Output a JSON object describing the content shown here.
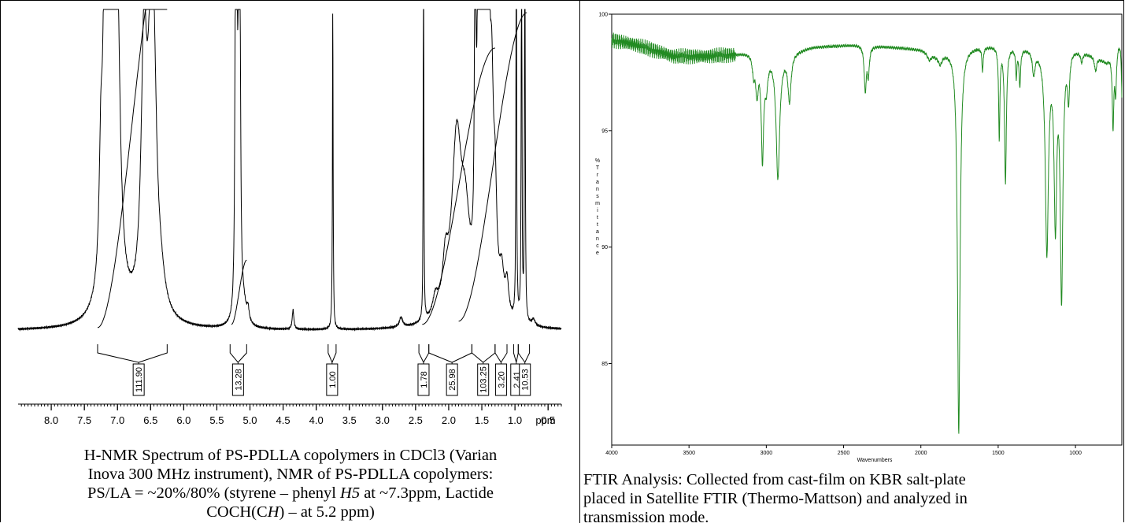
{
  "chart_data": [
    {
      "type": "line",
      "name": "nmr",
      "xunit": "ppm",
      "xlim": [
        8.5,
        0.3
      ],
      "x_ticks": [
        "8.0",
        "7.5",
        "7.0",
        "6.5",
        "6.0",
        "5.5",
        "5.0",
        "4.5",
        "4.0",
        "3.5",
        "3.0",
        "2.5",
        "2.0",
        "1.5",
        "1.0",
        "0.5"
      ],
      "peaks": [
        {
          "ppm": 7.18,
          "h": 1.35,
          "w": 0.03
        },
        {
          "ppm": 7.1,
          "h": 0.9,
          "w": 0.06
        },
        {
          "ppm": 7.25,
          "h": 0.35,
          "w": 0.03
        },
        {
          "ppm": 7.05,
          "h": 1.35,
          "w": 0.03
        },
        {
          "ppm": 7.0,
          "h": 0.6,
          "w": 0.05
        },
        {
          "ppm": 6.6,
          "h": 0.78,
          "w": 0.05
        },
        {
          "ppm": 6.5,
          "h": 0.62,
          "w": 0.06
        },
        {
          "ppm": 6.45,
          "h": 0.55,
          "w": 0.05
        },
        {
          "ppm": 6.35,
          "h": 0.08,
          "w": 0.08
        },
        {
          "ppm": 5.22,
          "h": 0.75,
          "w": 0.012
        },
        {
          "ppm": 5.2,
          "h": 0.95,
          "w": 0.012
        },
        {
          "ppm": 5.17,
          "h": 0.98,
          "w": 0.012
        },
        {
          "ppm": 5.15,
          "h": 0.75,
          "w": 0.012
        },
        {
          "ppm": 5.1,
          "h": 0.06,
          "w": 0.05
        },
        {
          "ppm": 5.03,
          "h": 0.04,
          "w": 0.02
        },
        {
          "ppm": 4.35,
          "h": 0.06,
          "w": 0.015
        },
        {
          "ppm": 3.75,
          "h": 1.0,
          "w": 0.006
        },
        {
          "ppm": 2.72,
          "h": 0.03,
          "w": 0.03
        },
        {
          "ppm": 2.38,
          "h": 1.35,
          "w": 0.005
        },
        {
          "ppm": 2.2,
          "h": 0.06,
          "w": 0.05
        },
        {
          "ppm": 2.05,
          "h": 0.14,
          "w": 0.05
        },
        {
          "ppm": 1.88,
          "h": 0.55,
          "w": 0.09
        },
        {
          "ppm": 1.75,
          "h": 0.25,
          "w": 0.08
        },
        {
          "ppm": 1.6,
          "h": 1.35,
          "w": 0.01
        },
        {
          "ppm": 1.55,
          "h": 1.05,
          "w": 0.02
        },
        {
          "ppm": 1.5,
          "h": 0.95,
          "w": 0.03
        },
        {
          "ppm": 1.45,
          "h": 0.9,
          "w": 0.03
        },
        {
          "ppm": 1.4,
          "h": 0.75,
          "w": 0.03
        },
        {
          "ppm": 1.35,
          "h": 0.5,
          "w": 0.03
        },
        {
          "ppm": 1.3,
          "h": 0.3,
          "w": 0.03
        },
        {
          "ppm": 1.2,
          "h": 0.12,
          "w": 0.04
        },
        {
          "ppm": 1.12,
          "h": 0.1,
          "w": 0.03
        },
        {
          "ppm": 0.98,
          "h": 1.35,
          "w": 0.006
        },
        {
          "ppm": 0.9,
          "h": 1.35,
          "w": 0.006
        },
        {
          "ppm": 0.85,
          "h": 1.35,
          "w": 0.006
        },
        {
          "ppm": 0.72,
          "h": 0.02,
          "w": 0.03
        }
      ],
      "integral_curves": [
        {
          "from": 7.3,
          "to": 6.25,
          "y0": 0.01,
          "y1": 1.3
        },
        {
          "from": 5.28,
          "to": 5.05,
          "y0": 0.02,
          "y1": 0.22
        },
        {
          "from": 2.4,
          "to": 1.3,
          "y0": 0.02,
          "y1": 0.88
        },
        {
          "from": 1.85,
          "to": 0.82,
          "y0": 0.03,
          "y1": 0.99
        }
      ],
      "integrals": [
        {
          "label": "111.90",
          "from": 7.3,
          "to": 6.25,
          "at": 6.68
        },
        {
          "label": "13.28",
          "from": 5.3,
          "to": 5.05,
          "at": 5.18
        },
        {
          "label": "1.00",
          "from": 3.82,
          "to": 3.7,
          "at": 3.76
        },
        {
          "label": "1.78",
          "from": 2.45,
          "to": 2.3,
          "at": 2.38
        },
        {
          "label": "25.98",
          "from": 2.3,
          "to": 1.65,
          "at": 1.95
        },
        {
          "label": "103.25",
          "from": 1.65,
          "to": 1.3,
          "at": 1.48
        },
        {
          "label": "3.20",
          "from": 1.3,
          "to": 1.12,
          "at": 1.21
        },
        {
          "label": "2.41",
          "from": 1.02,
          "to": 0.95,
          "at": 0.98
        },
        {
          "label": "10.53",
          "from": 0.95,
          "to": 0.78,
          "at": 0.85
        }
      ]
    },
    {
      "type": "line",
      "name": "ftir",
      "color": "#228b22",
      "xlabel": "Wavenumbers",
      "ylabel": "% Transmittance",
      "xlim": [
        4000,
        700
      ],
      "ylim": [
        81.5,
        100
      ],
      "x_ticks": [
        "4000",
        "3500",
        "3000",
        "2500",
        "2000",
        "1500",
        "1000"
      ],
      "y_ticks": [
        "100",
        "95",
        "90",
        "85"
      ],
      "baseline": [
        [
          4000,
          98.9
        ],
        [
          3850,
          98.7
        ],
        [
          3700,
          98.4
        ],
        [
          3600,
          98.2
        ],
        [
          3400,
          98.2
        ],
        [
          3200,
          98.3
        ],
        [
          3100,
          98.4
        ],
        [
          2900,
          98.3
        ],
        [
          2700,
          98.6
        ],
        [
          2400,
          98.7
        ],
        [
          2200,
          98.6
        ],
        [
          2000,
          98.5
        ],
        [
          1900,
          98.3
        ],
        [
          1800,
          98.5
        ],
        [
          1700,
          98.6
        ],
        [
          1500,
          98.7
        ],
        [
          1300,
          98.6
        ],
        [
          1200,
          98.5
        ],
        [
          1050,
          98.7
        ],
        [
          900,
          98.3
        ],
        [
          800,
          98.0
        ],
        [
          740,
          98.6
        ],
        [
          700,
          99.3
        ]
      ],
      "bands": [
        {
          "wn": 3082,
          "depth": 0.8,
          "width": 10
        },
        {
          "wn": 3060,
          "depth": 1.6,
          "width": 10
        },
        {
          "wn": 3025,
          "depth": 4.4,
          "width": 9
        },
        {
          "wn": 3000,
          "depth": 1.2,
          "width": 12
        },
        {
          "wn": 2925,
          "depth": 5.3,
          "width": 14
        },
        {
          "wn": 2850,
          "depth": 2.0,
          "width": 12
        },
        {
          "wn": 2360,
          "depth": 1.9,
          "width": 8
        },
        {
          "wn": 2340,
          "depth": 1.2,
          "width": 8
        },
        {
          "wn": 1945,
          "depth": 0.3,
          "width": 15
        },
        {
          "wn": 1875,
          "depth": 0.4,
          "width": 15
        },
        {
          "wn": 1755,
          "depth": 16.5,
          "width": 10
        },
        {
          "wn": 1601,
          "depth": 1.0,
          "width": 5
        },
        {
          "wn": 1493,
          "depth": 3.9,
          "width": 5
        },
        {
          "wn": 1453,
          "depth": 5.8,
          "width": 7
        },
        {
          "wn": 1383,
          "depth": 1.2,
          "width": 5
        },
        {
          "wn": 1360,
          "depth": 1.6,
          "width": 6
        },
        {
          "wn": 1270,
          "depth": 1.0,
          "width": 10
        },
        {
          "wn": 1185,
          "depth": 8.6,
          "width": 12
        },
        {
          "wn": 1130,
          "depth": 7.2,
          "width": 10
        },
        {
          "wn": 1090,
          "depth": 10.6,
          "width": 10
        },
        {
          "wn": 1045,
          "depth": 2.0,
          "width": 8
        },
        {
          "wn": 960,
          "depth": 0.4,
          "width": 8
        },
        {
          "wn": 870,
          "depth": 0.6,
          "width": 8
        },
        {
          "wn": 757,
          "depth": 3.2,
          "width": 6
        },
        {
          "wn": 740,
          "depth": 1.8,
          "width": 6
        },
        {
          "wn": 698,
          "depth": 3.0,
          "width": 6
        }
      ]
    }
  ],
  "captions": {
    "nmr": [
      "H-NMR Spectrum of PS-PDLLA copolymers in CDCl3 (Varian",
      "Inova 300 MHz instrument), NMR of PS-PDLLA copolymers:",
      "PS/LA = ~20%/80% (styrene – phenyl ",
      "H5",
      " at ~7.3ppm, Lactide",
      "COCH(C",
      "H",
      ") – at 5.2 ppm)"
    ],
    "ir": [
      "FTIR Analysis: Collected from cast-film on KBR salt-plate",
      "placed in Satellite FTIR (Thermo-Mattson) and analyzed in",
      "transmission mode."
    ]
  }
}
